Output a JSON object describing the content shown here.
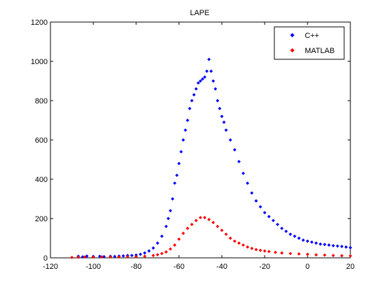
{
  "chart_data": {
    "type": "scatter",
    "title": "LAPE",
    "xlabel": "",
    "ylabel": "",
    "xlim": [
      -120,
      20
    ],
    "ylim": [
      0,
      1200
    ],
    "x_ticks": [
      -120,
      -100,
      -80,
      -60,
      -40,
      -20,
      0,
      20
    ],
    "y_ticks": [
      0,
      200,
      400,
      600,
      800,
      1000,
      1200
    ],
    "grid": false,
    "legend_position": "top-right",
    "series": [
      {
        "name": "C++",
        "color": "#0000ff",
        "marker": "diamond",
        "points": [
          [
            -107,
            8
          ],
          [
            -105,
            5
          ],
          [
            -103,
            9
          ],
          [
            -100,
            7
          ],
          [
            -97,
            8
          ],
          [
            -95,
            6
          ],
          [
            -92,
            8
          ],
          [
            -90,
            7
          ],
          [
            -88,
            9
          ],
          [
            -86,
            10
          ],
          [
            -84,
            12
          ],
          [
            -82,
            12
          ],
          [
            -80,
            14
          ],
          [
            -78,
            18
          ],
          [
            -76,
            25
          ],
          [
            -74,
            35
          ],
          [
            -72,
            50
          ],
          [
            -70,
            75
          ],
          [
            -68,
            110
          ],
          [
            -66,
            160
          ],
          [
            -65,
            200
          ],
          [
            -64,
            240
          ],
          [
            -63,
            300
          ],
          [
            -62,
            380
          ],
          [
            -61,
            420
          ],
          [
            -60,
            480
          ],
          [
            -59,
            540
          ],
          [
            -58,
            600
          ],
          [
            -57,
            650
          ],
          [
            -56,
            700
          ],
          [
            -55,
            760
          ],
          [
            -54,
            800
          ],
          [
            -53,
            830
          ],
          [
            -52,
            860
          ],
          [
            -51,
            890
          ],
          [
            -50,
            900
          ],
          [
            -49,
            910
          ],
          [
            -48,
            920
          ],
          [
            -47,
            950
          ],
          [
            -46,
            1010
          ],
          [
            -45,
            950
          ],
          [
            -44,
            900
          ],
          [
            -43,
            860
          ],
          [
            -42,
            800
          ],
          [
            -41,
            760
          ],
          [
            -40,
            720
          ],
          [
            -39,
            690
          ],
          [
            -38,
            650
          ],
          [
            -36,
            600
          ],
          [
            -34,
            550
          ],
          [
            -32,
            490
          ],
          [
            -30,
            430
          ],
          [
            -28,
            380
          ],
          [
            -26,
            330
          ],
          [
            -24,
            290
          ],
          [
            -22,
            260
          ],
          [
            -20,
            230
          ],
          [
            -18,
            210
          ],
          [
            -16,
            190
          ],
          [
            -14,
            170
          ],
          [
            -12,
            150
          ],
          [
            -10,
            135
          ],
          [
            -8,
            120
          ],
          [
            -6,
            110
          ],
          [
            -4,
            100
          ],
          [
            -2,
            90
          ],
          [
            0,
            85
          ],
          [
            2,
            80
          ],
          [
            4,
            75
          ],
          [
            6,
            70
          ],
          [
            8,
            68
          ],
          [
            10,
            65
          ],
          [
            12,
            62
          ],
          [
            14,
            60
          ],
          [
            16,
            58
          ],
          [
            18,
            55
          ],
          [
            20,
            52
          ]
        ]
      },
      {
        "name": "MATLAB",
        "color": "#ff0000",
        "marker": "diamond",
        "points": [
          [
            -110,
            2
          ],
          [
            -107,
            3
          ],
          [
            -104,
            4
          ],
          [
            -100,
            4
          ],
          [
            -96,
            5
          ],
          [
            -92,
            5
          ],
          [
            -88,
            5
          ],
          [
            -84,
            6
          ],
          [
            -80,
            6
          ],
          [
            -76,
            8
          ],
          [
            -72,
            12
          ],
          [
            -70,
            16
          ],
          [
            -68,
            22
          ],
          [
            -66,
            30
          ],
          [
            -64,
            45
          ],
          [
            -62,
            65
          ],
          [
            -60,
            95
          ],
          [
            -58,
            125
          ],
          [
            -56,
            150
          ],
          [
            -54,
            170
          ],
          [
            -52,
            190
          ],
          [
            -50,
            205
          ],
          [
            -48,
            205
          ],
          [
            -46,
            195
          ],
          [
            -44,
            180
          ],
          [
            -42,
            160
          ],
          [
            -40,
            140
          ],
          [
            -38,
            120
          ],
          [
            -36,
            100
          ],
          [
            -34,
            85
          ],
          [
            -32,
            75
          ],
          [
            -30,
            65
          ],
          [
            -28,
            55
          ],
          [
            -26,
            48
          ],
          [
            -24,
            42
          ],
          [
            -22,
            38
          ],
          [
            -20,
            35
          ],
          [
            -18,
            32
          ],
          [
            -15,
            28
          ],
          [
            -12,
            25
          ],
          [
            -8,
            22
          ],
          [
            -4,
            20
          ],
          [
            0,
            18
          ],
          [
            4,
            15
          ],
          [
            8,
            14
          ],
          [
            12,
            12
          ],
          [
            16,
            11
          ],
          [
            20,
            10
          ]
        ]
      }
    ]
  }
}
